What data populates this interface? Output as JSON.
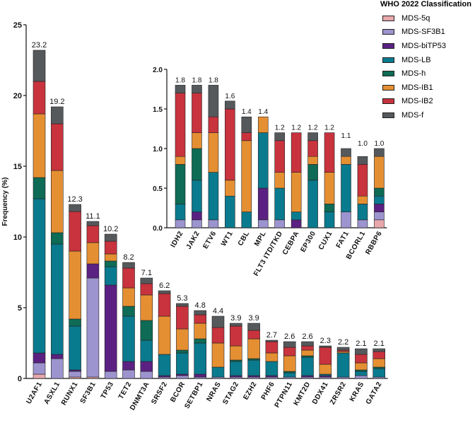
{
  "colors": {
    "MDS-5q": "#E8A8AC",
    "MDS-SF3B1": "#9C94CE",
    "MDS-biTP53": "#5B2182",
    "MDS-LB": "#0A7A8E",
    "MDS-h": "#0E6B55",
    "MDS-IB1": "#E58F33",
    "MDS-IB2": "#C8333D",
    "MDS-f": "#55595C"
  },
  "legend": {
    "title": "WHO 2022 Classification",
    "items": [
      "MDS-5q",
      "MDS-SF3B1",
      "MDS-biTP53",
      "MDS-LB",
      "MDS-h",
      "MDS-IB1",
      "MDS-IB2",
      "MDS-f"
    ]
  },
  "chart_data": [
    {
      "type": "bar",
      "stacked": true,
      "title": "",
      "ylabel": "Frequency (%)",
      "xlabel": "",
      "ylim": [
        0,
        25
      ],
      "yticks": [
        "0",
        "5",
        "10",
        "15",
        "20",
        "25"
      ],
      "categories": [
        "U2AF1",
        "ASXL1",
        "RUNX1",
        "SF3B1",
        "TP53",
        "TET2",
        "DNMT3A",
        "SRSF2",
        "BCOR",
        "SETBP1",
        "NRAS",
        "STAG2",
        "EZH2",
        "PHF6",
        "PTPN11",
        "KMT2D",
        "DDX41",
        "ZRSR2",
        "KRAS",
        "GATA2"
      ],
      "totals": [
        "23.2",
        "19.2",
        "12.3",
        "11.1",
        "10.2",
        "8.2",
        "7.1",
        "6.2",
        "5.3",
        "4.8",
        "4.4",
        "3.9",
        "3.9",
        "2.7",
        "2.6",
        "2.6",
        "2.3",
        "2.2",
        "2.1",
        "2.1"
      ],
      "series": [
        {
          "name": "MDS-5q",
          "values": [
            0.3,
            0.0,
            0.1,
            0.1,
            0.0,
            0.0,
            0.0,
            0.0,
            0.0,
            0.0,
            0.0,
            0.0,
            0.0,
            0.0,
            0.0,
            0.0,
            0.0,
            0.0,
            0.0,
            0.0
          ]
        },
        {
          "name": "MDS-SF3B1",
          "values": [
            0.8,
            1.4,
            0.4,
            7.0,
            0.5,
            0.6,
            0.5,
            0.1,
            0.2,
            0.1,
            0.1,
            0.1,
            0.1,
            0.1,
            0.1,
            0.1,
            0.1,
            0.1,
            0.2,
            0.1
          ]
        },
        {
          "name": "MDS-biTP53",
          "values": [
            0.7,
            0.3,
            0.1,
            1.0,
            6.1,
            0.6,
            0.7,
            0.1,
            0.1,
            0.2,
            0.0,
            0.1,
            0.1,
            0.1,
            0.0,
            0.1,
            0.1,
            0.0,
            0.0,
            0.0
          ]
        },
        {
          "name": "MDS-LB",
          "values": [
            10.9,
            7.8,
            3.1,
            0.0,
            1.3,
            3.2,
            1.5,
            1.5,
            1.5,
            2.2,
            0.7,
            1.0,
            1.1,
            1.0,
            0.3,
            1.3,
            0.1,
            1.7,
            0.3,
            0.6
          ]
        },
        {
          "name": "MDS-h",
          "values": [
            1.5,
            0.8,
            0.5,
            0.0,
            0.4,
            0.7,
            1.4,
            0.0,
            0.2,
            0.3,
            0.0,
            0.1,
            0.1,
            0.0,
            0.1,
            0.1,
            0.0,
            0.0,
            0.1,
            0.1
          ]
        },
        {
          "name": "MDS-IB1",
          "values": [
            4.5,
            4.4,
            4.8,
            1.5,
            0.5,
            1.3,
            1.8,
            2.7,
            1.5,
            1.1,
            1.7,
            1.0,
            1.4,
            0.6,
            1.1,
            0.4,
            0.7,
            0.1,
            0.5,
            0.6
          ]
        },
        {
          "name": "MDS-IB2",
          "values": [
            2.3,
            3.3,
            2.8,
            1.2,
            0.9,
            1.4,
            0.8,
            1.6,
            1.6,
            0.6,
            1.1,
            1.4,
            0.6,
            0.8,
            0.6,
            0.3,
            1.2,
            0.1,
            0.6,
            0.5
          ]
        },
        {
          "name": "MDS-f",
          "values": [
            2.2,
            1.2,
            0.5,
            0.3,
            0.5,
            0.4,
            0.4,
            0.2,
            0.2,
            0.3,
            0.8,
            0.2,
            0.5,
            0.1,
            0.4,
            0.3,
            0.1,
            0.2,
            0.4,
            0.2
          ]
        }
      ]
    },
    {
      "type": "bar",
      "stacked": true,
      "title": "",
      "ylabel": "",
      "xlabel": "",
      "ylim": [
        0,
        2.0
      ],
      "yticks": [
        "0.0",
        "0.5",
        "1.0",
        "1.5",
        "2.0"
      ],
      "categories": [
        "IDH2",
        "JAK2",
        "ETV6",
        "WT1",
        "CBL",
        "MPL",
        "FLT3 ITD/TKD",
        "CEBPA",
        "EP300",
        "CUX1",
        "FAT1",
        "BCORL1",
        "RBBP6"
      ],
      "totals": [
        "1.8",
        "1.8",
        "1.8",
        "1.6",
        "1.4",
        "1.4",
        "1.2",
        "1.2",
        "1.2",
        "1.2",
        "1.1",
        "1.0",
        "1.0"
      ],
      "series": [
        {
          "name": "MDS-5q",
          "values": [
            0.0,
            0.0,
            0.0,
            0.0,
            0.0,
            0.0,
            0.0,
            0.0,
            0.0,
            0.0,
            0.0,
            0.0,
            0.1
          ]
        },
        {
          "name": "MDS-SF3B1",
          "values": [
            0.1,
            0.1,
            0.1,
            0.0,
            0.0,
            0.1,
            0.1,
            0.0,
            0.0,
            0.0,
            0.2,
            0.1,
            0.1
          ]
        },
        {
          "name": "MDS-biTP53",
          "values": [
            0.0,
            0.1,
            0.0,
            0.0,
            0.0,
            0.4,
            0.0,
            0.1,
            0.0,
            0.0,
            0.0,
            0.0,
            0.1
          ]
        },
        {
          "name": "MDS-LB",
          "values": [
            0.2,
            0.4,
            0.6,
            0.4,
            0.2,
            0.7,
            0.4,
            0.1,
            0.6,
            0.2,
            0.6,
            0.2,
            0.1
          ]
        },
        {
          "name": "MDS-h",
          "values": [
            0.5,
            0.4,
            0.0,
            0.0,
            0.0,
            0.0,
            0.0,
            0.0,
            0.2,
            0.1,
            0.0,
            0.0,
            0.1
          ]
        },
        {
          "name": "MDS-IB1",
          "values": [
            0.1,
            0.2,
            0.5,
            0.2,
            0.9,
            0.2,
            0.2,
            0.5,
            0.1,
            0.4,
            0.1,
            0.1,
            0.4
          ]
        },
        {
          "name": "MDS-IB2",
          "values": [
            0.8,
            0.5,
            0.2,
            0.9,
            0.1,
            0.0,
            0.4,
            0.5,
            0.2,
            0.5,
            0.0,
            0.4,
            0.0
          ]
        },
        {
          "name": "MDS-f",
          "values": [
            0.1,
            0.1,
            0.4,
            0.1,
            0.2,
            0.0,
            0.1,
            0.0,
            0.1,
            0.0,
            0.1,
            0.1,
            0.1
          ]
        }
      ]
    }
  ]
}
